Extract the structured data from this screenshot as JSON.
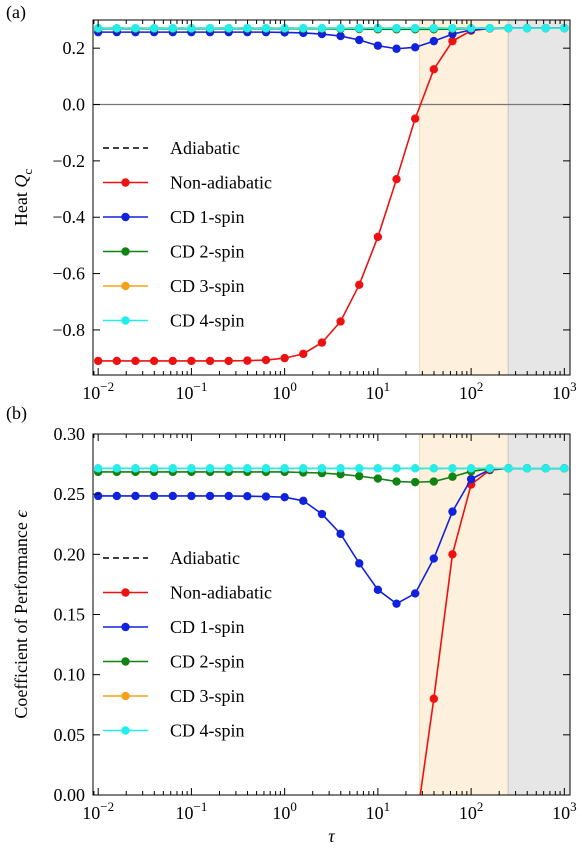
{
  "chart_data": [
    {
      "panel_label": "(a)",
      "type": "line",
      "xscale": "log",
      "xlim": [
        0.0088,
        1150
      ],
      "ylim": [
        -0.96,
        0.3
      ],
      "xlabel": "",
      "ylabel": "Heat Q_c",
      "ylabel_text": "Heat ",
      "ylabel_var": "Q",
      "ylabel_sub": "c",
      "xticks": [
        {
          "value": 0.01,
          "base": "10",
          "exp": "−2"
        },
        {
          "value": 0.1,
          "base": "10",
          "exp": "−1"
        },
        {
          "value": 1,
          "base": "10",
          "exp": "0"
        },
        {
          "value": 10,
          "base": "10",
          "exp": "1"
        },
        {
          "value": 100,
          "base": "10",
          "exp": "2"
        },
        {
          "value": 1000,
          "base": "10",
          "exp": "3"
        }
      ],
      "yticks": [
        {
          "value": 0.2,
          "label": "0.2"
        },
        {
          "value": 0.0,
          "label": "0.0"
        },
        {
          "value": -0.2,
          "label": "−0.2"
        },
        {
          "value": -0.4,
          "label": "−0.4"
        },
        {
          "value": -0.6,
          "label": "−0.6"
        },
        {
          "value": -0.8,
          "label": "−0.8"
        }
      ],
      "hline": 0.0,
      "shaded_regions": [
        {
          "x0": 28,
          "x1": 250,
          "color": "#fdf0dc"
        },
        {
          "x0": 250,
          "x1": 1150,
          "color": "#e6e6e6"
        }
      ],
      "x": [
        0.01,
        0.01585,
        0.02512,
        0.03981,
        0.0631,
        0.1,
        0.1585,
        0.2512,
        0.3981,
        0.631,
        1,
        1.585,
        2.512,
        3.981,
        6.31,
        10,
        15.85,
        25.12,
        39.81,
        63.1,
        100,
        158.5,
        251.2,
        398.1,
        631,
        1000
      ],
      "series": [
        {
          "name": "Adiabatic",
          "color": "#000000",
          "dashed": true,
          "markers": false,
          "values": [
            0.271,
            0.271,
            0.271,
            0.271,
            0.271,
            0.271,
            0.271,
            0.271,
            0.271,
            0.271,
            0.271,
            0.271,
            0.271,
            0.271,
            0.271,
            0.271,
            0.271,
            0.271,
            0.271,
            0.271,
            0.271,
            0.271,
            0.271,
            0.271,
            0.271,
            0.271
          ]
        },
        {
          "name": "Non-adiabatic",
          "color": "#ee1111",
          "dashed": false,
          "markers": true,
          "values": [
            -0.91,
            -0.91,
            -0.91,
            -0.91,
            -0.91,
            -0.91,
            -0.91,
            -0.91,
            -0.909,
            -0.907,
            -0.9,
            -0.885,
            -0.845,
            -0.77,
            -0.64,
            -0.47,
            -0.265,
            -0.05,
            0.125,
            0.225,
            0.262,
            0.27,
            0.271,
            0.271,
            0.271,
            0.271
          ]
        },
        {
          "name": "CD 1-spin",
          "color": "#1122dd",
          "dashed": false,
          "markers": true,
          "values": [
            0.257,
            0.257,
            0.257,
            0.257,
            0.257,
            0.257,
            0.257,
            0.257,
            0.257,
            0.257,
            0.256,
            0.254,
            0.25,
            0.243,
            0.229,
            0.209,
            0.198,
            0.203,
            0.225,
            0.25,
            0.265,
            0.27,
            0.271,
            0.271,
            0.271,
            0.271
          ]
        },
        {
          "name": "CD 2-spin",
          "color": "#128312",
          "dashed": false,
          "markers": true,
          "values": [
            0.269,
            0.269,
            0.269,
            0.269,
            0.269,
            0.269,
            0.269,
            0.269,
            0.269,
            0.269,
            0.269,
            0.269,
            0.269,
            0.268,
            0.268,
            0.267,
            0.267,
            0.267,
            0.267,
            0.268,
            0.27,
            0.271,
            0.271,
            0.271,
            0.271,
            0.271
          ]
        },
        {
          "name": "CD 3-spin",
          "color": "#f5a018",
          "dashed": false,
          "markers": true,
          "values": [
            0.271,
            0.271,
            0.271,
            0.271,
            0.271,
            0.271,
            0.271,
            0.271,
            0.271,
            0.271,
            0.271,
            0.271,
            0.271,
            0.271,
            0.271,
            0.271,
            0.271,
            0.271,
            0.271,
            0.271,
            0.271,
            0.271,
            0.271,
            0.271,
            0.271,
            0.271
          ]
        },
        {
          "name": "CD 4-spin",
          "color": "#22eeee",
          "dashed": false,
          "markers": true,
          "values": [
            0.271,
            0.271,
            0.271,
            0.271,
            0.271,
            0.271,
            0.271,
            0.271,
            0.271,
            0.271,
            0.271,
            0.271,
            0.271,
            0.271,
            0.271,
            0.271,
            0.271,
            0.271,
            0.271,
            0.271,
            0.271,
            0.271,
            0.271,
            0.271,
            0.271,
            0.271
          ]
        }
      ],
      "legend": "center-left",
      "grid": false
    },
    {
      "panel_label": "(b)",
      "type": "line",
      "xscale": "log",
      "xlim": [
        0.0088,
        1150
      ],
      "ylim": [
        0.0,
        0.3
      ],
      "xlabel": "τ",
      "ylabel": "Coefficient of Performance ϵ",
      "ylabel_text": "Coefficient of Performance ",
      "ylabel_var": "ϵ",
      "ylabel_sub": "",
      "xticks": [
        {
          "value": 0.01,
          "base": "10",
          "exp": "−2"
        },
        {
          "value": 0.1,
          "base": "10",
          "exp": "−1"
        },
        {
          "value": 1,
          "base": "10",
          "exp": "0"
        },
        {
          "value": 10,
          "base": "10",
          "exp": "1"
        },
        {
          "value": 100,
          "base": "10",
          "exp": "2"
        },
        {
          "value": 1000,
          "base": "10",
          "exp": "3"
        }
      ],
      "yticks": [
        {
          "value": 0.3,
          "label": "0.30"
        },
        {
          "value": 0.25,
          "label": "0.25"
        },
        {
          "value": 0.2,
          "label": "0.20"
        },
        {
          "value": 0.15,
          "label": "0.15"
        },
        {
          "value": 0.1,
          "label": "0.10"
        },
        {
          "value": 0.05,
          "label": "0.05"
        },
        {
          "value": 0.0,
          "label": "0.00"
        }
      ],
      "hline": null,
      "shaded_regions": [
        {
          "x0": 28,
          "x1": 250,
          "color": "#fdf0dc"
        },
        {
          "x0": 250,
          "x1": 1150,
          "color": "#e6e6e6"
        }
      ],
      "x": [
        0.01,
        0.01585,
        0.02512,
        0.03981,
        0.0631,
        0.1,
        0.1585,
        0.2512,
        0.3981,
        0.631,
        1,
        1.585,
        2.512,
        3.981,
        6.31,
        10,
        15.85,
        25.12,
        39.81,
        63.1,
        100,
        158.5,
        251.2,
        398.1,
        631,
        1000
      ],
      "series": [
        {
          "name": "Adiabatic",
          "color": "#000000",
          "dashed": true,
          "markers": false,
          "values": [
            0.2715,
            0.2715,
            0.2715,
            0.2715,
            0.2715,
            0.2715,
            0.2715,
            0.2715,
            0.2715,
            0.2715,
            0.2715,
            0.2715,
            0.2715,
            0.2715,
            0.2715,
            0.2715,
            0.2715,
            0.2715,
            0.2715,
            0.2715,
            0.2715,
            0.2715,
            0.2715,
            0.2715,
            0.2715,
            0.2715
          ]
        },
        {
          "name": "Non-adiabatic",
          "color": "#ee1111",
          "dashed": false,
          "markers": true,
          "values": [
            null,
            null,
            null,
            null,
            null,
            null,
            null,
            null,
            null,
            null,
            null,
            null,
            null,
            null,
            null,
            null,
            null,
            -0.03,
            0.08,
            0.2,
            0.258,
            0.27,
            0.2715,
            0.2715,
            0.2715,
            0.2715
          ]
        },
        {
          "name": "CD 1-spin",
          "color": "#1122dd",
          "dashed": false,
          "markers": true,
          "values": [
            0.2485,
            0.2485,
            0.2485,
            0.2485,
            0.2485,
            0.2485,
            0.2485,
            0.2485,
            0.2483,
            0.248,
            0.2475,
            0.2445,
            0.2335,
            0.217,
            0.1925,
            0.1705,
            0.159,
            0.1675,
            0.1965,
            0.2355,
            0.2625,
            0.2705,
            0.2715,
            0.2715,
            0.2715,
            0.2715
          ]
        },
        {
          "name": "CD 2-spin",
          "color": "#128312",
          "dashed": false,
          "markers": true,
          "values": [
            0.2685,
            0.2685,
            0.2685,
            0.2685,
            0.2685,
            0.2685,
            0.2685,
            0.2685,
            0.2685,
            0.2685,
            0.2685,
            0.268,
            0.2675,
            0.2665,
            0.265,
            0.263,
            0.2605,
            0.26,
            0.2605,
            0.2645,
            0.269,
            0.271,
            0.2715,
            0.2715,
            0.2715,
            0.2715
          ]
        },
        {
          "name": "CD 3-spin",
          "color": "#f5a018",
          "dashed": false,
          "markers": true,
          "values": [
            0.2715,
            0.2715,
            0.2715,
            0.2715,
            0.2715,
            0.2715,
            0.2715,
            0.2715,
            0.2715,
            0.2715,
            0.2715,
            0.2715,
            0.2715,
            0.2715,
            0.2715,
            0.2715,
            0.2715,
            0.2715,
            0.2715,
            0.2715,
            0.2715,
            0.2715,
            0.2715,
            0.2715,
            0.2715,
            0.2715
          ]
        },
        {
          "name": "CD 4-spin",
          "color": "#22eeee",
          "dashed": false,
          "markers": true,
          "values": [
            0.2715,
            0.2715,
            0.2715,
            0.2715,
            0.2715,
            0.2715,
            0.2715,
            0.2715,
            0.2715,
            0.2715,
            0.2715,
            0.2715,
            0.2715,
            0.2715,
            0.2715,
            0.2715,
            0.2715,
            0.2715,
            0.2715,
            0.2715,
            0.2715,
            0.2715,
            0.2715,
            0.2715,
            0.2715,
            0.2715
          ]
        }
      ],
      "legend": "center-left",
      "grid": false
    }
  ]
}
